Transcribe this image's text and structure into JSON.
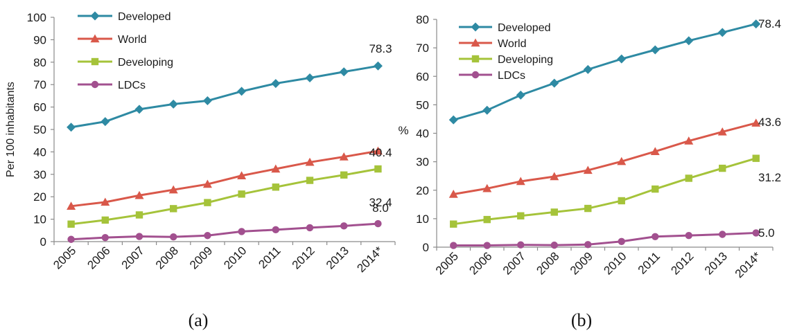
{
  "colors": {
    "Developed": "#2E8AA3",
    "World": "#D9584A",
    "Developing": "#A5C33A",
    "LDCs": "#A2508F"
  },
  "markers": {
    "Developed": "diamond",
    "World": "triangle",
    "Developing": "square",
    "LDCs": "circle"
  },
  "chart_data": [
    {
      "type": "line",
      "caption": "(a)",
      "ylabel": "Per 100 inhabitants",
      "ylim": [
        0,
        100
      ],
      "yticks": [
        0,
        10,
        20,
        30,
        40,
        50,
        60,
        70,
        80,
        90,
        100
      ],
      "categories": [
        "2005",
        "2006",
        "2007",
        "2008",
        "2009",
        "2010",
        "2011",
        "2012",
        "2013",
        "2014*"
      ],
      "legend_position": "top-left",
      "series": [
        {
          "name": "Developed",
          "values": [
            51.0,
            53.5,
            59.0,
            61.3,
            62.8,
            67.0,
            70.5,
            73.0,
            75.7,
            78.3
          ],
          "end_label": "78.3"
        },
        {
          "name": "World",
          "values": [
            15.8,
            17.6,
            20.6,
            23.1,
            25.6,
            29.4,
            32.4,
            35.4,
            37.8,
            40.4
          ],
          "end_label": "40.4"
        },
        {
          "name": "Developing",
          "values": [
            7.8,
            9.6,
            11.9,
            14.7,
            17.4,
            21.2,
            24.3,
            27.3,
            29.7,
            32.4
          ],
          "end_label": "32.4"
        },
        {
          "name": "LDCs",
          "values": [
            1.0,
            1.8,
            2.3,
            2.1,
            2.7,
            4.5,
            5.3,
            6.2,
            7.0,
            8.0
          ],
          "end_label": "8.0"
        }
      ]
    },
    {
      "type": "line",
      "caption": "(b)",
      "ylabel": "%",
      "ylim": [
        0,
        80
      ],
      "yticks": [
        0,
        10,
        20,
        30,
        40,
        50,
        60,
        70,
        80
      ],
      "categories": [
        "2005",
        "2006",
        "2007",
        "2008",
        "2009",
        "2010",
        "2011",
        "2012",
        "2013",
        "2014*"
      ],
      "legend_position": "top-left",
      "series": [
        {
          "name": "Developed",
          "values": [
            44.7,
            48.1,
            53.4,
            57.6,
            62.4,
            66.1,
            69.3,
            72.5,
            75.4,
            78.4
          ],
          "end_label": "78.4"
        },
        {
          "name": "World",
          "values": [
            18.6,
            20.6,
            23.1,
            24.8,
            27.0,
            30.1,
            33.6,
            37.3,
            40.5,
            43.6
          ],
          "end_label": "43.6"
        },
        {
          "name": "Developing",
          "values": [
            8.1,
            9.7,
            11.0,
            12.3,
            13.6,
            16.3,
            20.4,
            24.2,
            27.7,
            31.2
          ],
          "end_label": "31.2"
        },
        {
          "name": "LDCs",
          "values": [
            0.6,
            0.6,
            0.8,
            0.7,
            0.9,
            2.0,
            3.7,
            4.1,
            4.5,
            5.0
          ],
          "end_label": "5.0"
        }
      ]
    }
  ]
}
